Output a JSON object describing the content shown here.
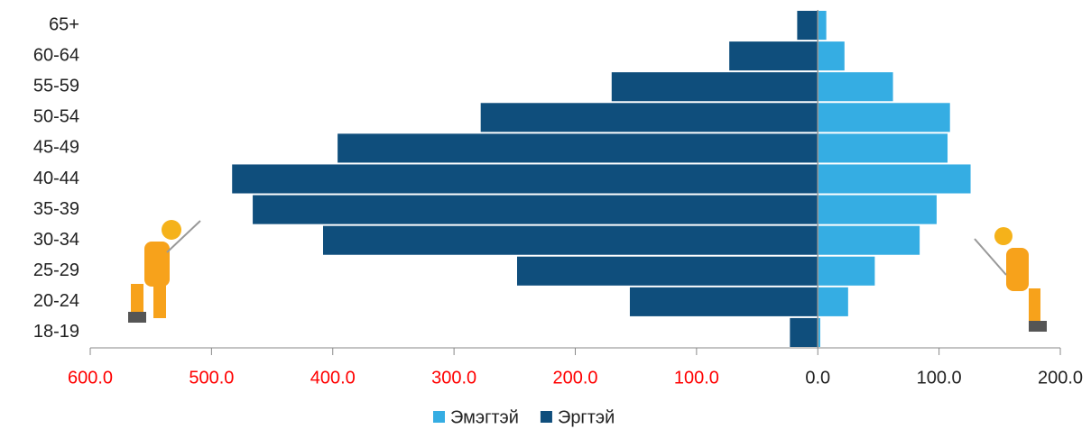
{
  "chart_data": {
    "type": "bar",
    "orientation": "horizontal",
    "stacked": true,
    "categories": [
      "65+",
      "60-64",
      "55-59",
      "50-54",
      "45-49",
      "40-44",
      "35-39",
      "30-34",
      "25-29",
      "20-24",
      "18-19"
    ],
    "series": [
      {
        "name": "Эмэгтэй",
        "color": "#35ade3",
        "values": [
          7,
          22,
          62,
          109,
          107,
          126,
          98,
          84,
          47,
          25,
          2
        ]
      },
      {
        "name": "Эргтэй",
        "color": "#0f4e7c",
        "values": [
          -17,
          -73,
          -170,
          -278,
          -396,
          -483,
          -466,
          -408,
          -248,
          -155,
          -23
        ]
      }
    ],
    "xlim": [
      -600,
      200
    ],
    "xticks": [
      {
        "value": -600,
        "label": "600.0"
      },
      {
        "value": -500,
        "label": "500.0"
      },
      {
        "value": -400,
        "label": "400.0"
      },
      {
        "value": -300,
        "label": "300.0"
      },
      {
        "value": -200,
        "label": "200.0"
      },
      {
        "value": -100,
        "label": "100.0"
      },
      {
        "value": 0,
        "label": "0.0"
      },
      {
        "value": 100,
        "label": "100.0"
      },
      {
        "value": 200,
        "label": "200.0"
      }
    ],
    "negative_tick_label_color": "#ff0000",
    "legend": "bottom"
  }
}
